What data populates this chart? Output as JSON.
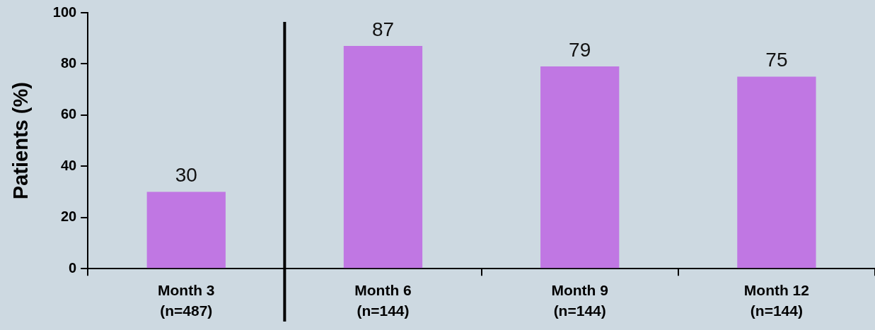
{
  "chart_data": {
    "type": "bar",
    "ylabel": "Patients (%)",
    "categories": [
      "Month 3\n(n=487)",
      "Month 6\n(n=144)",
      "Month 9\n(n=144)",
      "Month 12\n(n=144)"
    ],
    "values": [
      30,
      87,
      79,
      75
    ],
    "color": "#c077e3",
    "ylim": [
      0,
      100
    ],
    "yticks": [
      0,
      20,
      40,
      60,
      80,
      100
    ],
    "grid": false,
    "legend": false,
    "data_labels": true
  }
}
